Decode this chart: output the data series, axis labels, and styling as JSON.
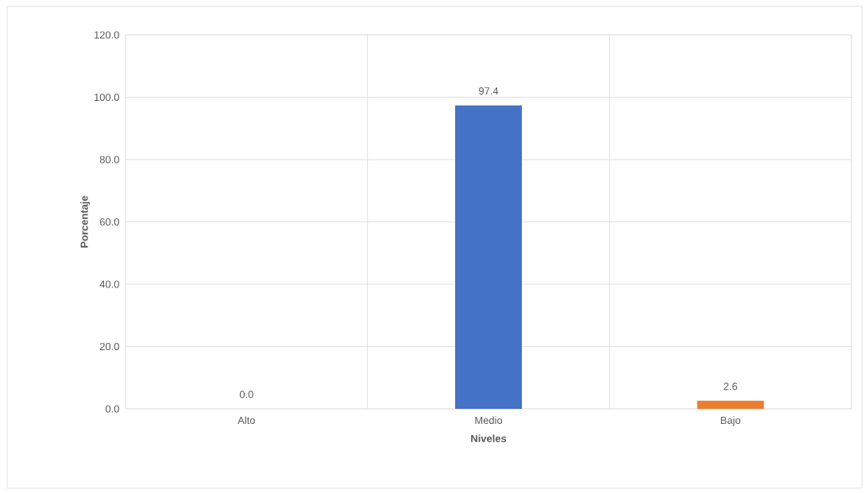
{
  "chart_data": {
    "type": "bar",
    "xlabel": "Niveles",
    "ylabel": "Porcentaje",
    "categories": [
      "Alto",
      "Medio",
      "Bajo"
    ],
    "values": [
      0.0,
      97.4,
      2.6
    ],
    "colors": [
      "#a5a5a5",
      "#4472c4",
      "#ed7d31"
    ],
    "ylim": [
      0,
      120
    ],
    "yticks": [
      {
        "value": 0,
        "label": "0.0"
      },
      {
        "value": 20,
        "label": "20.0"
      },
      {
        "value": 40,
        "label": "40.0"
      },
      {
        "value": 60,
        "label": "60.0"
      },
      {
        "value": 80,
        "label": "80.0"
      },
      {
        "value": 100,
        "label": "100.0"
      },
      {
        "value": 120,
        "label": "120.0"
      }
    ],
    "value_labels": [
      "0.0",
      "97.4",
      "2.6"
    ],
    "grid": true
  }
}
